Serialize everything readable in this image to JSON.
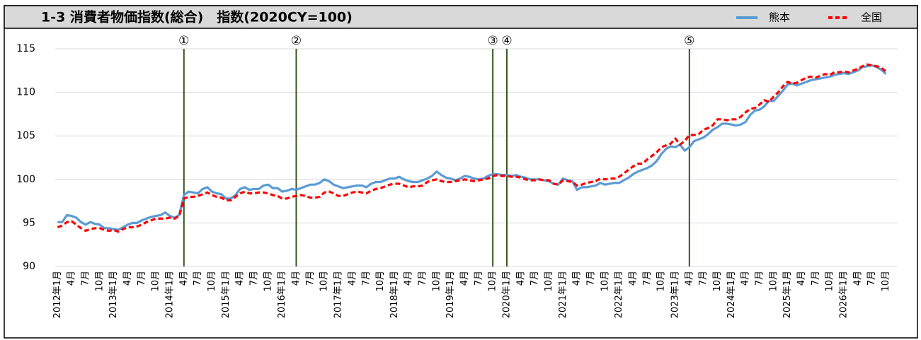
{
  "chart_data": {
    "type": "line",
    "title": "1-3 消費者物価指数(総合)　指数(2020CY=100)",
    "categories": [
      "2012年1月",
      null,
      null,
      "4月",
      null,
      null,
      "7月",
      null,
      null,
      "10月",
      null,
      null,
      "2013年1月",
      null,
      null,
      "4月",
      null,
      null,
      "7月",
      null,
      null,
      "10月",
      null,
      null,
      "2014年1月",
      null,
      null,
      "4月",
      null,
      null,
      "7月",
      null,
      null,
      "10月",
      null,
      null,
      "2015年1月",
      null,
      null,
      "4月",
      null,
      null,
      "7月",
      null,
      null,
      "10月",
      null,
      null,
      "2016年1月",
      null,
      null,
      "4月",
      null,
      null,
      "7月",
      null,
      null,
      "10月",
      null,
      null,
      "2017年1月",
      null,
      null,
      "4月",
      null,
      null,
      "7月",
      null,
      null,
      "10月",
      null,
      null,
      "2018年1月",
      null,
      null,
      "4月",
      null,
      null,
      "7月",
      null,
      null,
      "10月",
      null,
      null,
      "2019年1月",
      null,
      null,
      "4月",
      null,
      null,
      "7月",
      null,
      null,
      "10月",
      null,
      null,
      "2020年1月",
      null,
      null,
      "4月",
      null,
      null,
      "7月",
      null,
      null,
      "10月",
      null,
      null,
      "2021年1月",
      null,
      null,
      "4月",
      null,
      null,
      "7月",
      null,
      null,
      "10月",
      null,
      null,
      "2022年1月",
      null,
      null,
      "4月",
      null,
      null,
      "7月",
      null,
      null,
      "10月",
      null,
      null,
      "2023年1月",
      null,
      null,
      "4月",
      null,
      null,
      "7月",
      null,
      null,
      "10月",
      null,
      null,
      "2024年1月",
      null,
      null,
      "4月",
      null,
      null,
      "7月",
      null,
      null,
      "10月",
      null,
      null,
      "2025年1月",
      null,
      null,
      "4月",
      null,
      null,
      "7月",
      null,
      null,
      "10月",
      null,
      null,
      "2026年1月",
      null,
      null,
      "4月",
      null,
      null,
      "7月",
      null,
      null,
      "10月",
      null,
      null
    ],
    "series": [
      {
        "name": "熊本",
        "color": "#5b9bd5",
        "dash": false,
        "values": [
          95.1,
          95.1,
          95.9,
          95.8,
          95.6,
          95.1,
          94.8,
          95.1,
          94.9,
          94.8,
          94.4,
          94.4,
          94.3,
          94.2,
          94.5,
          94.8,
          95.0,
          95.0,
          95.3,
          95.5,
          95.7,
          95.8,
          95.9,
          96.2,
          95.8,
          95.6,
          95.9,
          98.2,
          98.6,
          98.5,
          98.4,
          98.9,
          99.1,
          98.6,
          98.4,
          98.3,
          97.8,
          97.8,
          98.2,
          98.9,
          99.1,
          98.8,
          98.9,
          98.9,
          99.3,
          99.4,
          99.0,
          99.0,
          98.6,
          98.7,
          98.9,
          98.8,
          99.0,
          99.2,
          99.4,
          99.4,
          99.6,
          100.0,
          99.8,
          99.4,
          99.2,
          99.0,
          99.1,
          99.2,
          99.3,
          99.3,
          99.1,
          99.5,
          99.7,
          99.7,
          99.9,
          100.1,
          100.1,
          100.3,
          100.0,
          99.8,
          99.7,
          99.7,
          99.9,
          100.1,
          100.4,
          100.9,
          100.5,
          100.2,
          100.1,
          99.9,
          100.1,
          100.4,
          100.3,
          100.1,
          100.0,
          100.1,
          100.4,
          100.6,
          100.6,
          100.5,
          100.5,
          100.4,
          100.5,
          100.3,
          100.2,
          100.0,
          100.0,
          100.0,
          99.9,
          99.8,
          99.5,
          99.4,
          100.1,
          99.9,
          99.8,
          98.8,
          99.1,
          99.1,
          99.2,
          99.3,
          99.6,
          99.4,
          99.5,
          99.6,
          99.6,
          99.9,
          100.2,
          100.6,
          100.9,
          101.1,
          101.3,
          101.6,
          102.1,
          102.9,
          103.5,
          103.8,
          103.7,
          104.0,
          103.3,
          103.7,
          104.4,
          104.6,
          104.8,
          105.2,
          105.7,
          106.0,
          106.4,
          106.4,
          106.3,
          106.2,
          106.3,
          106.6,
          107.4,
          107.9,
          108.0,
          108.4,
          109.0,
          109.0,
          109.6,
          110.2,
          110.9,
          111.0,
          110.8,
          111.0,
          111.2,
          111.4,
          111.5,
          111.6,
          111.7,
          111.8,
          112.0,
          112.1,
          112.2,
          112.1,
          112.3,
          112.5,
          112.9,
          113.0,
          113.1,
          112.9,
          112.6,
          112.1,
          null,
          null
        ]
      },
      {
        "name": "全国",
        "color": "#ff0000",
        "dash": true,
        "values": [
          94.5,
          94.7,
          95.1,
          95.2,
          94.8,
          94.4,
          94.1,
          94.3,
          94.4,
          94.4,
          94.2,
          94.1,
          94.2,
          94.0,
          94.3,
          94.5,
          94.5,
          94.6,
          94.8,
          95.1,
          95.3,
          95.5,
          95.5,
          95.5,
          95.6,
          95.5,
          95.8,
          97.8,
          98.0,
          98.0,
          98.1,
          98.3,
          98.5,
          98.2,
          98.0,
          97.9,
          97.6,
          97.6,
          98.0,
          98.4,
          98.6,
          98.4,
          98.4,
          98.5,
          98.5,
          98.4,
          98.2,
          98.1,
          97.8,
          97.8,
          98.0,
          98.1,
          98.2,
          98.1,
          97.9,
          97.9,
          98.0,
          98.5,
          98.6,
          98.4,
          98.1,
          98.1,
          98.3,
          98.5,
          98.6,
          98.5,
          98.4,
          98.7,
          98.9,
          99.0,
          99.2,
          99.4,
          99.5,
          99.5,
          99.3,
          99.1,
          99.2,
          99.2,
          99.3,
          99.7,
          99.9,
          100.0,
          99.8,
          99.7,
          99.7,
          99.8,
          99.9,
          100.0,
          99.9,
          99.8,
          99.9,
          100.0,
          100.1,
          100.4,
          100.5,
          100.4,
          100.4,
          100.3,
          100.3,
          100.2,
          100.0,
          99.9,
          99.9,
          100.0,
          99.9,
          99.9,
          99.5,
          99.4,
          99.9,
          99.8,
          99.7,
          99.3,
          99.4,
          99.6,
          99.7,
          99.8,
          100.1,
          100.0,
          100.1,
          100.1,
          100.3,
          100.7,
          101.1,
          101.5,
          101.8,
          101.8,
          102.3,
          102.7,
          103.1,
          103.7,
          103.9,
          104.1,
          104.7,
          104.0,
          104.4,
          105.1,
          105.1,
          105.2,
          105.7,
          105.9,
          106.2,
          106.9,
          106.9,
          106.8,
          106.9,
          106.9,
          107.2,
          107.7,
          108.1,
          108.2,
          108.6,
          109.1,
          108.9,
          109.5,
          110.0,
          110.7,
          111.2,
          111.0,
          111.1,
          111.4,
          111.7,
          111.8,
          111.7,
          111.9,
          112.1,
          112.0,
          112.3,
          112.3,
          112.4,
          112.3,
          112.5,
          112.7,
          113.0,
          113.2,
          113.1,
          113.0,
          112.8,
          112.4,
          null,
          null
        ]
      }
    ],
    "markers": [
      {
        "label": "①",
        "index": 27
      },
      {
        "label": "②",
        "index": 51
      },
      {
        "label": "③",
        "index": 93
      },
      {
        "label": "④",
        "index": 96
      },
      {
        "label": "⑤",
        "index": 135
      }
    ],
    "marker_color": "#375623",
    "ylim": [
      90,
      115
    ],
    "yticks": [
      90,
      95,
      100,
      105,
      110,
      115
    ],
    "grid": true,
    "legend": "top-right"
  }
}
